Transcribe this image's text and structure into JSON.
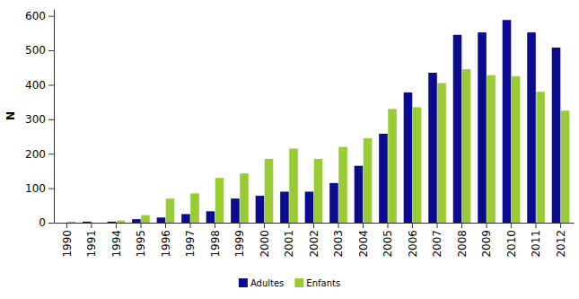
{
  "chart_data": {
    "type": "bar",
    "y_label": "N",
    "categories": [
      "1990",
      "1991",
      "1994",
      "1995",
      "1996",
      "1997",
      "1998",
      "1999",
      "2000",
      "2001",
      "2002",
      "2003",
      "2004",
      "2005",
      "2006",
      "2007",
      "2008",
      "2009",
      "2010",
      "2011",
      "2012"
    ],
    "series": [
      {
        "name": "Adultes",
        "color": "#0b0b8f",
        "values": [
          0,
          3,
          3,
          10,
          15,
          25,
          33,
          70,
          78,
          90,
          90,
          115,
          165,
          258,
          378,
          435,
          545,
          552,
          588,
          552,
          508
        ]
      },
      {
        "name": "Enfants",
        "color": "#99cc33",
        "values": [
          3,
          0,
          6,
          22,
          70,
          85,
          130,
          143,
          185,
          215,
          185,
          220,
          245,
          330,
          335,
          405,
          445,
          428,
          425,
          380,
          325
        ]
      }
    ],
    "ylim": [
      0,
      620
    ],
    "yticks": [
      0,
      100,
      200,
      300,
      400,
      500,
      600
    ],
    "grid": false,
    "legend": "bottom"
  }
}
